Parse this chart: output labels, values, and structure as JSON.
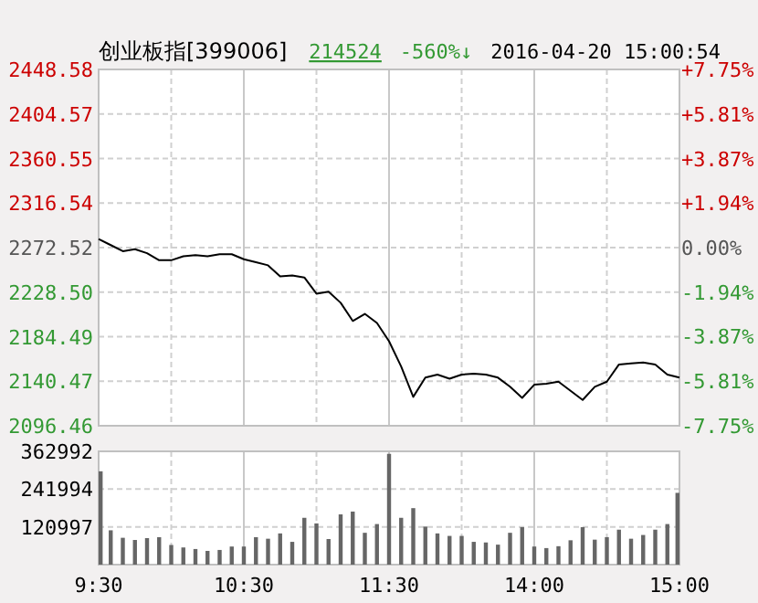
{
  "chart_data": [
    {
      "type": "line",
      "title": "创业板指[399006]",
      "annotations": [
        "214524",
        "-560%↓",
        "2016-04-20 15:00:54"
      ],
      "categories": [
        null,
        null,
        null,
        null,
        null,
        null,
        null,
        null,
        null,
        null,
        null,
        null,
        null,
        null,
        null,
        null,
        null,
        null,
        null,
        null,
        null,
        null,
        null,
        null,
        null,
        null,
        null,
        null,
        null,
        null,
        null,
        null,
        null,
        null,
        null,
        null,
        null,
        null,
        null,
        null,
        null,
        null,
        null,
        null,
        null,
        null,
        null,
        null,
        null
      ],
      "ylim": [
        2096.46,
        2448.58
      ],
      "yticks": [
        2448.58,
        2404.57,
        2360.55,
        2316.54,
        2272.52,
        {
          "value": 2228.5,
          "label": "2228.50"
        },
        2184.49,
        2140.47,
        2096.46
      ],
      "y2lim": [
        -7.75,
        7.75
      ],
      "y2ticks": [
        {
          "value": 7.75,
          "label": "+7.75%"
        },
        {
          "value": 5.81,
          "label": "+5.81%"
        },
        {
          "value": 3.87,
          "label": "+3.87%"
        },
        {
          "value": 1.94,
          "label": "+1.94%"
        },
        {
          "value": 0,
          "label": "0.00%"
        },
        {
          "value": -1.94,
          "label": "-1.94%"
        },
        {
          "value": -3.87,
          "label": "-3.87%"
        },
        {
          "value": -5.81,
          "label": "-5.81%"
        },
        {
          "value": -7.75,
          "label": "-7.75%"
        }
      ],
      "tick_labels": "y",
      "grid": true,
      "series": [
        {
          "color": "#000000",
          "values": [
            2281,
            2275,
            2269,
            2271,
            2267,
            2260,
            2260,
            2264,
            2265,
            2264,
            2266,
            2266,
            2261,
            2258,
            2255,
            2244,
            2245,
            2243,
            2227,
            2229,
            2218,
            2200,
            2207,
            2198,
            2180,
            2155,
            2125,
            2144,
            2147,
            2143,
            2147,
            2148,
            2147,
            2144,
            2135,
            2124,
            2137,
            2138,
            2140,
            2131,
            2122,
            2135,
            2140,
            2157,
            2158,
            2159,
            2157,
            2147,
            2144
          ]
        }
      ]
    },
    {
      "type": "bar",
      "color": "#666666",
      "grid": true,
      "categories": [
        "9:30",
        null,
        null,
        null,
        null,
        null,
        null,
        null,
        null,
        null,
        null,
        null,
        "10:30",
        null,
        null,
        null,
        null,
        null,
        null,
        null,
        null,
        null,
        null,
        null,
        "11:30",
        null,
        null,
        null,
        null,
        null,
        null,
        null,
        null,
        null,
        null,
        null,
        "14:00",
        null,
        null,
        null,
        null,
        null,
        null,
        null,
        null,
        null,
        null,
        null,
        "15:00"
      ],
      "ylim": [
        0,
        362992
      ],
      "yticks": [
        362992,
        241994,
        120997,
        {
          "value": 0,
          "label": null
        }
      ],
      "values": [
        299000,
        110000,
        86000,
        79000,
        85000,
        88000,
        63000,
        55000,
        50000,
        44000,
        47000,
        58000,
        58000,
        88000,
        83000,
        100000,
        73000,
        150000,
        132000,
        82000,
        161000,
        170000,
        102000,
        130000,
        355000,
        150000,
        181000,
        122000,
        100000,
        92000,
        92000,
        73000,
        71000,
        64000,
        102000,
        120000,
        58000,
        53000,
        59000,
        78000,
        120000,
        80000,
        88000,
        112000,
        83000,
        95000,
        112000,
        130000,
        230000
      ]
    }
  ]
}
